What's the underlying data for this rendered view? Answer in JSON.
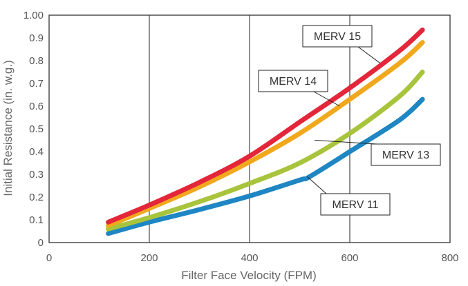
{
  "chart_data": {
    "type": "line",
    "title": "",
    "xlabel": "Filter Face Velocity (FPM)",
    "ylabel": "Initial Resistance (in. w.g.)",
    "xlim": [
      0,
      800
    ],
    "ylim": [
      0,
      1.0
    ],
    "xticks": [
      "0",
      "200",
      "400",
      "600",
      "800"
    ],
    "yticks": [
      "0",
      "0.1",
      "0.2",
      "0.3",
      "0.4",
      "0.5",
      "0.6",
      "0.7",
      "0.8",
      "0.9",
      "1.00"
    ],
    "grid": true,
    "colors": {
      "MERV 15": "#e3263a",
      "MERV 14": "#f2a81d",
      "MERV 13": "#a8c43c",
      "MERV 11": "#1e86c2"
    },
    "series": [
      {
        "name": "MERV 15",
        "x": [
          118,
          200,
          300,
          400,
          500,
          600,
          700,
          745
        ],
        "y": [
          0.09,
          0.165,
          0.265,
          0.38,
          0.53,
          0.68,
          0.845,
          0.935
        ]
      },
      {
        "name": "MERV 14",
        "x": [
          118,
          200,
          300,
          400,
          500,
          600,
          700,
          745
        ],
        "y": [
          0.075,
          0.15,
          0.245,
          0.355,
          0.48,
          0.63,
          0.79,
          0.88
        ]
      },
      {
        "name": "MERV 13",
        "x": [
          118,
          200,
          300,
          400,
          500,
          600,
          700,
          745
        ],
        "y": [
          0.06,
          0.11,
          0.18,
          0.26,
          0.35,
          0.48,
          0.645,
          0.75
        ]
      },
      {
        "name": "MERV 11",
        "x": [
          118,
          200,
          300,
          400,
          500,
          520,
          600,
          700,
          745
        ],
        "y": [
          0.04,
          0.09,
          0.145,
          0.205,
          0.275,
          0.29,
          0.4,
          0.54,
          0.63
        ]
      }
    ],
    "annotations": [
      {
        "series": "MERV 15",
        "label": "MERV 15",
        "point_x": 660,
        "point_y": 0.79
      },
      {
        "series": "MERV 14",
        "label": "MERV 14",
        "point_x": 580,
        "point_y": 0.6
      },
      {
        "series": "MERV 13",
        "label": "MERV 13",
        "point_x": 530,
        "point_y": 0.45
      },
      {
        "series": "MERV 11",
        "label": "MERV 11",
        "point_x": 515,
        "point_y": 0.29
      }
    ]
  }
}
